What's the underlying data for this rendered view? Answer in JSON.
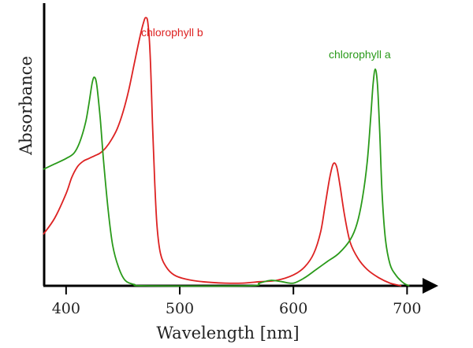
{
  "chart_data": {
    "type": "line",
    "xlabel": "Wavelength [nm]",
    "ylabel": "Absorbance",
    "xlim": [
      380,
      715
    ],
    "ylim": [
      0,
      1.0
    ],
    "x_ticks": [
      400,
      500,
      600,
      700
    ],
    "x_tick_labels": [
      "400",
      "500",
      "600",
      "700"
    ],
    "y_ticks_shown": false,
    "grid": false,
    "legend": "none (inline series labels)",
    "series": [
      {
        "name": "chlorophyll b",
        "color": "#dd2222",
        "points": [
          [
            380,
            0.19
          ],
          [
            390,
            0.25
          ],
          [
            400,
            0.34
          ],
          [
            405,
            0.4
          ],
          [
            410,
            0.44
          ],
          [
            415,
            0.46
          ],
          [
            420,
            0.47
          ],
          [
            425,
            0.48
          ],
          [
            430,
            0.49
          ],
          [
            435,
            0.51
          ],
          [
            440,
            0.54
          ],
          [
            445,
            0.58
          ],
          [
            450,
            0.64
          ],
          [
            455,
            0.72
          ],
          [
            460,
            0.82
          ],
          [
            465,
            0.92
          ],
          [
            468,
            0.97
          ],
          [
            470,
            0.99
          ],
          [
            472,
            0.97
          ],
          [
            474,
            0.85
          ],
          [
            476,
            0.6
          ],
          [
            478,
            0.38
          ],
          [
            480,
            0.22
          ],
          [
            483,
            0.12
          ],
          [
            488,
            0.07
          ],
          [
            495,
            0.04
          ],
          [
            505,
            0.025
          ],
          [
            520,
            0.015
          ],
          [
            540,
            0.01
          ],
          [
            555,
            0.01
          ],
          [
            570,
            0.015
          ],
          [
            585,
            0.02
          ],
          [
            600,
            0.04
          ],
          [
            610,
            0.07
          ],
          [
            618,
            0.12
          ],
          [
            624,
            0.2
          ],
          [
            628,
            0.3
          ],
          [
            632,
            0.4
          ],
          [
            635,
            0.45
          ],
          [
            638,
            0.44
          ],
          [
            641,
            0.37
          ],
          [
            645,
            0.26
          ],
          [
            650,
            0.16
          ],
          [
            657,
            0.1
          ],
          [
            665,
            0.06
          ],
          [
            675,
            0.03
          ],
          [
            685,
            0.01
          ],
          [
            695,
            0.0
          ]
        ]
      },
      {
        "name": "chlorophyll a",
        "color": "#2a9a1a",
        "points": [
          [
            380,
            0.43
          ],
          [
            390,
            0.45
          ],
          [
            400,
            0.47
          ],
          [
            407,
            0.49
          ],
          [
            412,
            0.53
          ],
          [
            417,
            0.6
          ],
          [
            420,
            0.67
          ],
          [
            423,
            0.75
          ],
          [
            425,
            0.77
          ],
          [
            427,
            0.74
          ],
          [
            430,
            0.62
          ],
          [
            433,
            0.46
          ],
          [
            437,
            0.28
          ],
          [
            441,
            0.15
          ],
          [
            446,
            0.07
          ],
          [
            452,
            0.02
          ],
          [
            460,
            0.005
          ],
          [
            470,
            0.0
          ],
          [
            560,
            0.0
          ],
          [
            570,
            0.01
          ],
          [
            580,
            0.02
          ],
          [
            590,
            0.015
          ],
          [
            600,
            0.01
          ],
          [
            610,
            0.03
          ],
          [
            620,
            0.06
          ],
          [
            630,
            0.09
          ],
          [
            640,
            0.12
          ],
          [
            650,
            0.17
          ],
          [
            656,
            0.23
          ],
          [
            661,
            0.33
          ],
          [
            665,
            0.46
          ],
          [
            668,
            0.62
          ],
          [
            670,
            0.74
          ],
          [
            672,
            0.8
          ],
          [
            674,
            0.74
          ],
          [
            676,
            0.56
          ],
          [
            678,
            0.34
          ],
          [
            681,
            0.17
          ],
          [
            685,
            0.08
          ],
          [
            690,
            0.04
          ],
          [
            697,
            0.01
          ],
          [
            702,
            0.0
          ]
        ]
      }
    ],
    "annotations": [
      {
        "text": "chlorophyll b",
        "color": "#dd2222"
      },
      {
        "text": "chlorophyll a",
        "color": "#2a9a1a"
      }
    ]
  }
}
